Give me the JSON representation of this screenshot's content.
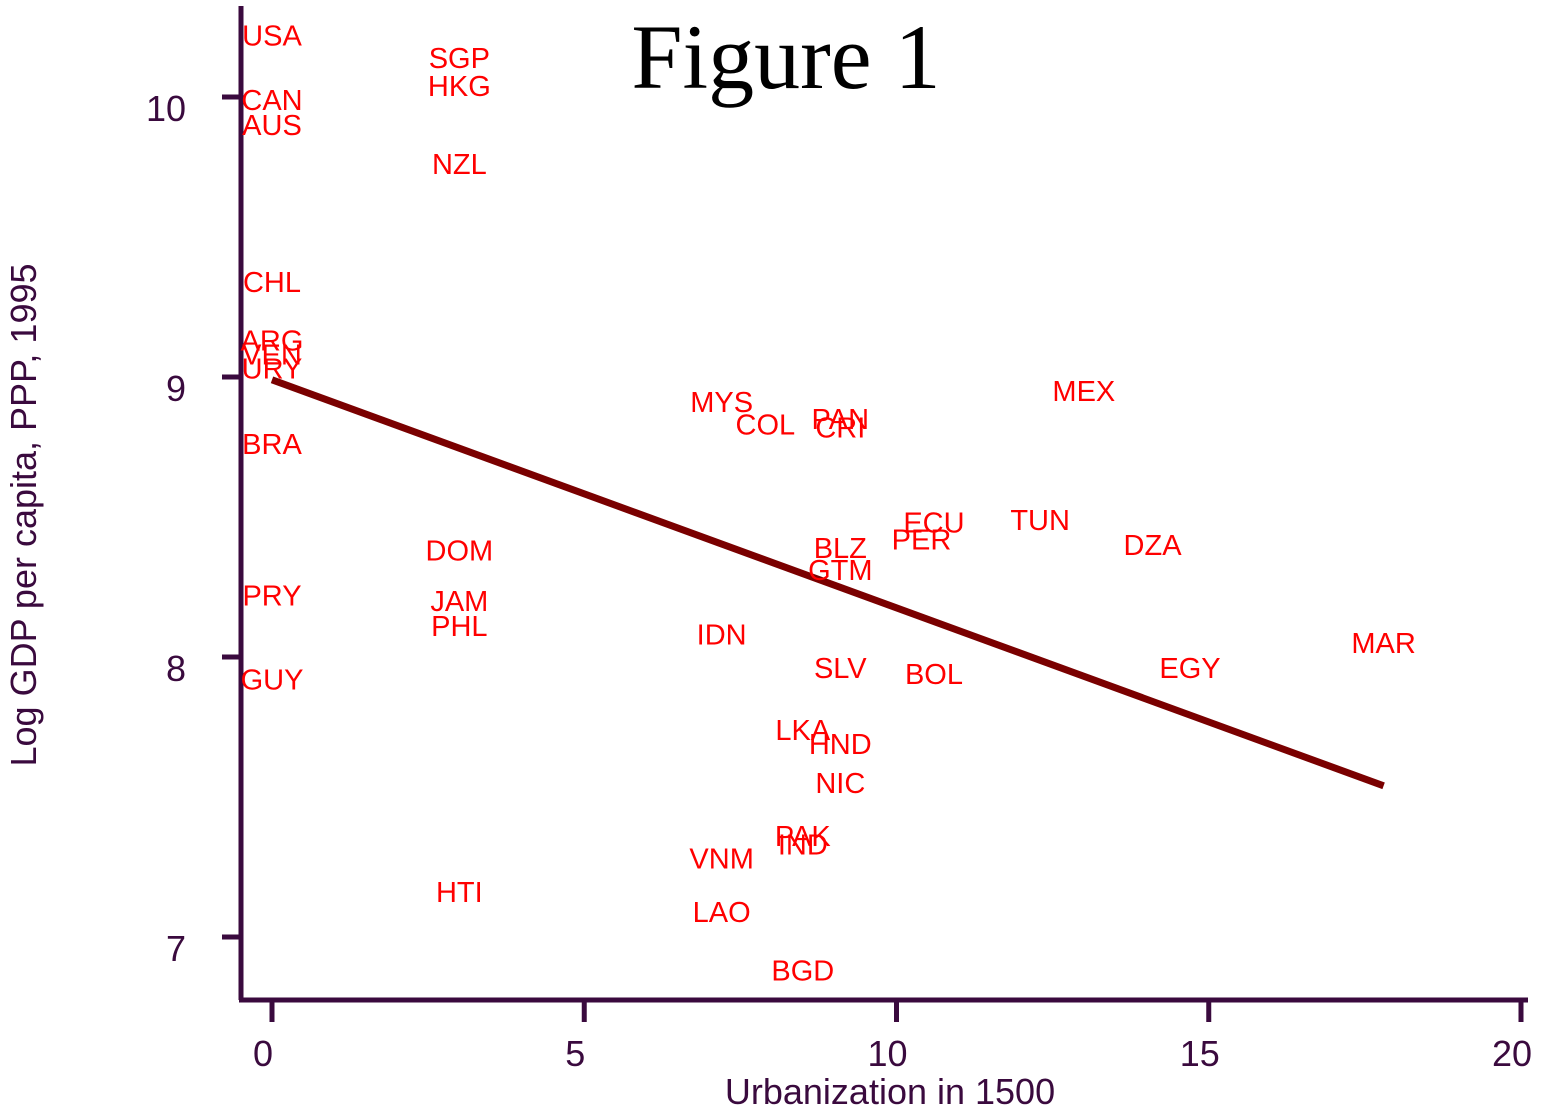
{
  "chart_data": {
    "type": "scatter",
    "title": "Figure 1",
    "xlabel": "Urbanization in 1500",
    "ylabel": "Log GDP per capita, PPP, 1995",
    "xlim": [
      -0.5,
      20.5
    ],
    "ylim": [
      6.78,
      10.34
    ],
    "xticks": [
      0,
      5,
      10,
      15,
      20
    ],
    "yticks": [
      7,
      8,
      9,
      10
    ],
    "grid": false,
    "legend": "none",
    "colors": {
      "axis": "#3a0a3e",
      "labels": "#ff0000",
      "fit": "#7a0000"
    },
    "fit_line": {
      "x": [
        0,
        17.8
      ],
      "y": [
        8.99,
        7.54
      ]
    },
    "points": [
      {
        "label": "USA",
        "x": 0,
        "y": 10.22
      },
      {
        "label": "CAN",
        "x": 0,
        "y": 9.99
      },
      {
        "label": "AUS",
        "x": 0,
        "y": 9.9
      },
      {
        "label": "CHL",
        "x": 0,
        "y": 9.34
      },
      {
        "label": "ARG",
        "x": 0,
        "y": 9.13
      },
      {
        "label": "VEN",
        "x": 0,
        "y": 9.08
      },
      {
        "label": "URY",
        "x": 0,
        "y": 9.03
      },
      {
        "label": "BRA",
        "x": 0,
        "y": 8.76
      },
      {
        "label": "PRY",
        "x": 0,
        "y": 8.22
      },
      {
        "label": "GUY",
        "x": 0,
        "y": 7.92
      },
      {
        "label": "SGP",
        "x": 3,
        "y": 10.14
      },
      {
        "label": "HKG",
        "x": 3,
        "y": 10.04
      },
      {
        "label": "NZL",
        "x": 3,
        "y": 9.76
      },
      {
        "label": "DOM",
        "x": 3,
        "y": 8.38
      },
      {
        "label": "JAM",
        "x": 3,
        "y": 8.2
      },
      {
        "label": "PHL",
        "x": 3,
        "y": 8.11
      },
      {
        "label": "HTI",
        "x": 3,
        "y": 7.16
      },
      {
        "label": "MYS",
        "x": 7.2,
        "y": 8.91
      },
      {
        "label": "COL",
        "x": 7.9,
        "y": 8.83
      },
      {
        "label": "IDN",
        "x": 7.2,
        "y": 8.08
      },
      {
        "label": "VNM",
        "x": 7.2,
        "y": 7.28
      },
      {
        "label": "LAO",
        "x": 7.2,
        "y": 7.09
      },
      {
        "label": "LKA",
        "x": 8.5,
        "y": 7.74
      },
      {
        "label": "PAK",
        "x": 8.5,
        "y": 7.36
      },
      {
        "label": "IND",
        "x": 8.5,
        "y": 7.33
      },
      {
        "label": "BGD",
        "x": 8.5,
        "y": 6.88
      },
      {
        "label": "PAN",
        "x": 9.1,
        "y": 8.85
      },
      {
        "label": "CRI",
        "x": 9.1,
        "y": 8.82
      },
      {
        "label": "BLZ",
        "x": 9.1,
        "y": 8.39
      },
      {
        "label": "GTM",
        "x": 9.1,
        "y": 8.31
      },
      {
        "label": "SLV",
        "x": 9.1,
        "y": 7.96
      },
      {
        "label": "HND",
        "x": 9.1,
        "y": 7.69
      },
      {
        "label": "NIC",
        "x": 9.1,
        "y": 7.55
      },
      {
        "label": "ECU",
        "x": 10.6,
        "y": 8.48
      },
      {
        "label": "PER",
        "x": 10.4,
        "y": 8.42
      },
      {
        "label": "BOL",
        "x": 10.6,
        "y": 7.94
      },
      {
        "label": "TUN",
        "x": 12.3,
        "y": 8.49
      },
      {
        "label": "MEX",
        "x": 13,
        "y": 8.95
      },
      {
        "label": "DZA",
        "x": 14.1,
        "y": 8.4
      },
      {
        "label": "EGY",
        "x": 14.7,
        "y": 7.96
      },
      {
        "label": "MAR",
        "x": 17.8,
        "y": 8.05
      }
    ]
  }
}
